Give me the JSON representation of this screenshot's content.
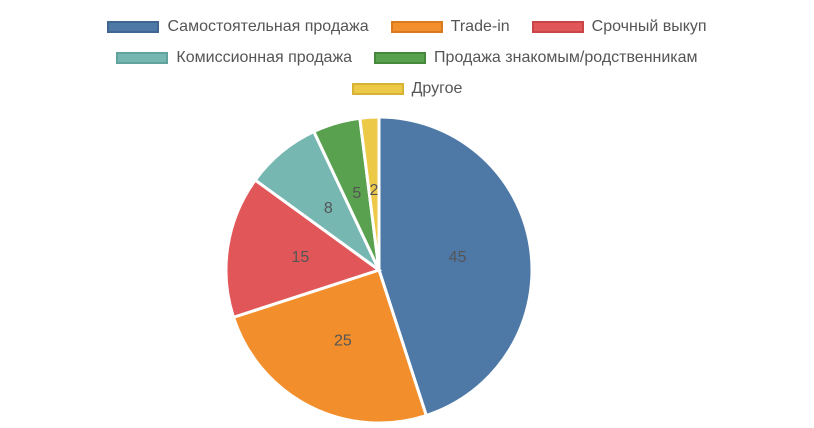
{
  "chart_data": {
    "type": "pie",
    "categories": [
      "Самостоятельная продажа",
      "Trade-in",
      "Срочный выкуп",
      "Комиссионная продажа",
      "Продажа знакомым/родственникам",
      "Другое"
    ],
    "values": [
      45,
      25,
      15,
      8,
      5,
      2
    ],
    "colors": [
      "#4e79a7",
      "#f28e2b",
      "#e15759",
      "#76b7b2",
      "#59a14f",
      "#edc948"
    ],
    "border_colors": [
      "#3f6590",
      "#d97a1e",
      "#c94548",
      "#63a39e",
      "#46893d",
      "#d6b236"
    ],
    "legend_position": "top"
  }
}
